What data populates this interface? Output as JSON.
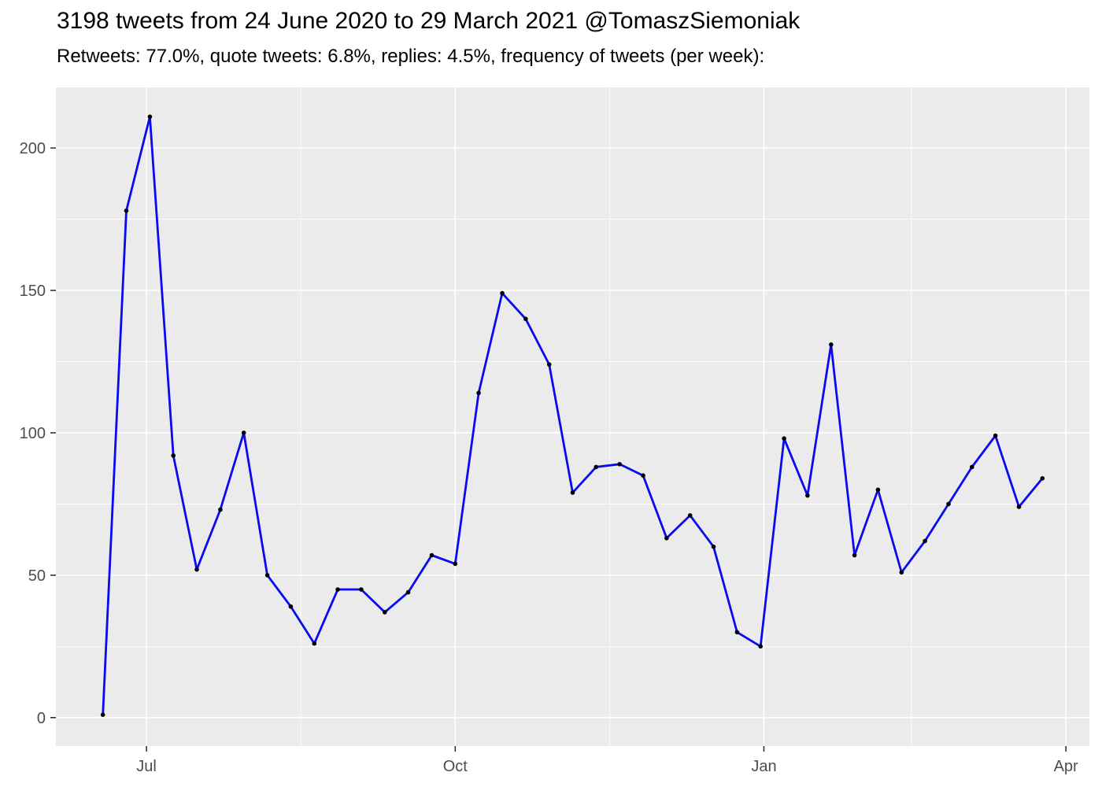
{
  "chart_data": {
    "type": "line",
    "title": "3198 tweets from 24 June 2020 to 29 March 2021 @TomaszSiemoniak",
    "subtitle": "Retweets: 77.0%, quote tweets: 6.8%, replies: 4.5%, frequency of tweets (per week):",
    "series_name": "tweets per week",
    "x": [
      "2020-06-18",
      "2020-06-25",
      "2020-07-02",
      "2020-07-09",
      "2020-07-16",
      "2020-07-23",
      "2020-07-30",
      "2020-08-06",
      "2020-08-13",
      "2020-08-20",
      "2020-08-27",
      "2020-09-03",
      "2020-09-10",
      "2020-09-17",
      "2020-09-24",
      "2020-10-01",
      "2020-10-08",
      "2020-10-15",
      "2020-10-22",
      "2020-10-29",
      "2020-11-05",
      "2020-11-12",
      "2020-11-19",
      "2020-11-26",
      "2020-12-03",
      "2020-12-10",
      "2020-12-17",
      "2020-12-24",
      "2020-12-31",
      "2021-01-07",
      "2021-01-14",
      "2021-01-21",
      "2021-01-28",
      "2021-02-04",
      "2021-02-11",
      "2021-02-18",
      "2021-02-25",
      "2021-03-04",
      "2021-03-11",
      "2021-03-18",
      "2021-03-25"
    ],
    "values": [
      1,
      178,
      211,
      92,
      52,
      73,
      100,
      50,
      39,
      26,
      45,
      45,
      37,
      44,
      57,
      54,
      114,
      149,
      140,
      124,
      79,
      88,
      89,
      85,
      63,
      71,
      60,
      30,
      25,
      98,
      78,
      131,
      57,
      80,
      51,
      62,
      75,
      88,
      99,
      74,
      84
    ],
    "total_tweets": 3198,
    "x_axis": {
      "ticks": [
        {
          "date": "2020-07-01",
          "label": "Jul"
        },
        {
          "date": "2020-10-01",
          "label": "Oct"
        },
        {
          "date": "2021-01-01",
          "label": "Jan"
        },
        {
          "date": "2021-04-01",
          "label": "Apr"
        }
      ],
      "minor": [
        "2020-08-16",
        "2020-11-16",
        "2021-02-14"
      ],
      "domain": [
        "2020-06-04",
        "2021-04-08"
      ]
    },
    "y_axis": {
      "ticks": [
        0,
        50,
        100,
        150,
        200
      ],
      "minor": [
        25,
        75,
        125,
        175
      ],
      "domain": [
        -10,
        221.3
      ]
    },
    "grid": "on",
    "legend": "none",
    "colors": {
      "line": "#0909F2",
      "point": "#000000",
      "panel_bg": "#EBEBEB",
      "grid_major": "#FFFFFF",
      "grid_minor": "#FFFFFF",
      "tick_mark": "#333333",
      "axis_text": "#4D4D4D",
      "title_text": "#000000",
      "page_bg": "#FFFFFF"
    }
  }
}
